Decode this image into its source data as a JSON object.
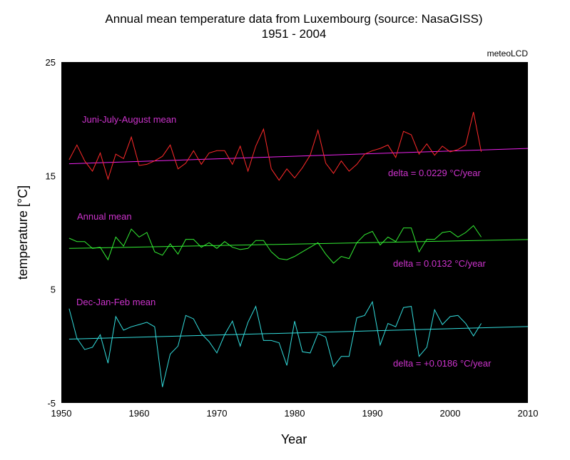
{
  "chart_data": {
    "type": "line",
    "title": "Annual mean temperature data from Luxembourg (source: NasaGISS)",
    "subtitle": "1951 - 2004",
    "credit": "meteoLCD",
    "xlabel": "Year",
    "ylabel": "temperature [°C]",
    "xlim": [
      1950,
      2010
    ],
    "ylim": [
      -5,
      25
    ],
    "xticks": [
      "1950",
      "1960",
      "1970",
      "1980",
      "1990",
      "2000",
      "2010"
    ],
    "yticks": [
      "25",
      "15",
      "5",
      "-5"
    ],
    "grid": false,
    "background": "#000000",
    "x": [
      1951,
      1952,
      1953,
      1954,
      1955,
      1956,
      1957,
      1958,
      1959,
      1960,
      1961,
      1962,
      1963,
      1964,
      1965,
      1966,
      1967,
      1968,
      1969,
      1970,
      1971,
      1972,
      1973,
      1974,
      1975,
      1976,
      1977,
      1978,
      1979,
      1980,
      1981,
      1982,
      1983,
      1984,
      1985,
      1986,
      1987,
      1988,
      1989,
      1990,
      1991,
      1992,
      1993,
      1994,
      1995,
      1996,
      1997,
      1998,
      1999,
      2000,
      2001,
      2002,
      2003,
      2004
    ],
    "series": [
      {
        "color": "#ff2a2a",
        "values": [
          16.4,
          17.7,
          16.3,
          15.4,
          17.0,
          14.7,
          16.9,
          16.5,
          18.4,
          15.9,
          16.0,
          16.3,
          16.7,
          17.7,
          15.6,
          16.1,
          17.2,
          16.0,
          17.0,
          17.2,
          17.2,
          16.0,
          17.6,
          15.4,
          17.6,
          19.1,
          15.6,
          14.6,
          15.6,
          14.8,
          15.7,
          16.8,
          19.0,
          16.1,
          15.2,
          16.3,
          15.4,
          16.0,
          16.9,
          17.2,
          17.4,
          17.7,
          16.6,
          18.9,
          18.6,
          16.9,
          17.8,
          16.8,
          17.6,
          17.1,
          17.3,
          17.7,
          20.6,
          17.1
        ]
      },
      {
        "color": "#33ee33",
        "values": [
          9.5,
          9.2,
          9.2,
          8.6,
          8.7,
          7.6,
          9.6,
          8.8,
          10.3,
          9.6,
          10.0,
          8.3,
          8.0,
          9.0,
          8.1,
          9.4,
          9.4,
          8.7,
          9.1,
          8.6,
          9.2,
          8.7,
          8.5,
          8.6,
          9.3,
          9.3,
          8.3,
          7.7,
          7.6,
          7.9,
          8.3,
          8.7,
          9.1,
          8.1,
          7.3,
          7.9,
          7.7,
          9.1,
          9.8,
          10.1,
          8.9,
          9.6,
          9.2,
          10.4,
          10.4,
          8.3,
          9.4,
          9.4,
          10.0,
          10.1,
          9.6,
          10.0,
          10.6,
          9.6
        ]
      },
      {
        "color": "#33dddd",
        "values": [
          3.3,
          0.7,
          -0.3,
          -0.1,
          1.0,
          -1.5,
          2.6,
          1.4,
          1.7,
          1.9,
          2.1,
          1.7,
          -3.6,
          -0.7,
          0.0,
          2.7,
          2.4,
          1.1,
          0.4,
          -0.6,
          1.0,
          2.2,
          0.0,
          2.1,
          3.5,
          0.5,
          0.5,
          0.3,
          -1.7,
          2.2,
          -0.5,
          -0.6,
          1.1,
          0.8,
          -1.8,
          -0.9,
          -0.9,
          2.5,
          2.7,
          3.9,
          0.1,
          2.0,
          1.7,
          3.4,
          3.5,
          -0.9,
          -0.1,
          3.2,
          1.9,
          2.6,
          2.7,
          2.0,
          0.9,
          2.0
        ]
      }
    ],
    "trend_lines": [
      {
        "color": "#ee22ee",
        "x": [
          1951,
          2010
        ],
        "y": [
          16.05,
          17.4
        ]
      },
      {
        "color": "#33ee33",
        "x": [
          1951,
          2010
        ],
        "y": [
          8.6,
          9.38
        ]
      },
      {
        "color": "#33dddd",
        "x": [
          1951,
          2010
        ],
        "y": [
          0.62,
          1.72
        ]
      }
    ],
    "annotations": {
      "jja_label": "Juni-July-August mean",
      "jja_delta": "delta = 0.0229 °C/year",
      "annual_label": "Annual mean",
      "annual_delta": "delta = 0.0132 °C/year",
      "djf_label": "Dec-Jan-Feb mean",
      "djf_delta": "delta = +0.0186 °C/year"
    }
  }
}
